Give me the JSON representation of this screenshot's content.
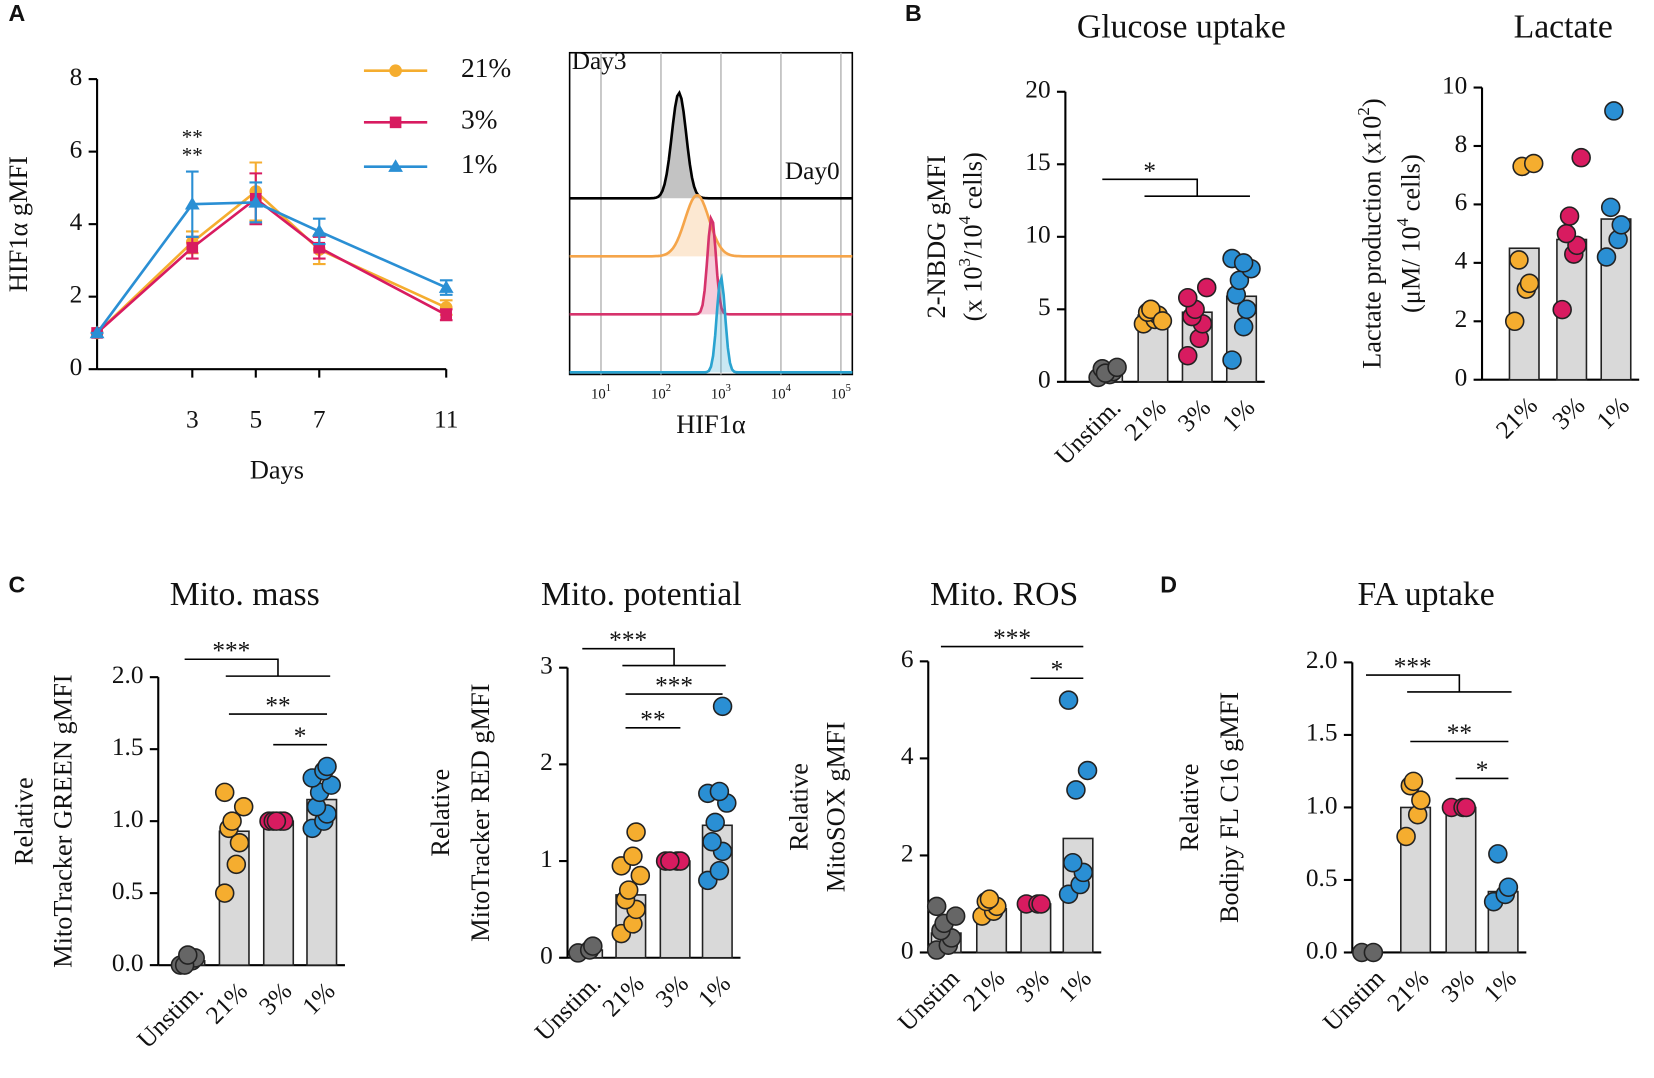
{
  "panels": [
    "A",
    "B",
    "C",
    "D"
  ],
  "chart_data": [
    {
      "type": "line",
      "ylabel": "HIF1α gMFI",
      "xlabel": "Days",
      "x": [
        0,
        3,
        5,
        7,
        11
      ],
      "xlim": [
        0,
        11
      ],
      "xticks": [
        3,
        5,
        7,
        11
      ],
      "ylim": [
        0,
        8
      ],
      "yticks": [
        0,
        2,
        4,
        6,
        8
      ],
      "series": [
        {
          "name": "21%",
          "color": "#f5ad2f",
          "marker": "circle",
          "values": [
            1,
            3.5,
            4.9,
            3.3,
            1.7
          ],
          "errors": [
            0,
            0.3,
            0.8,
            0.4,
            0.2
          ]
        },
        {
          "name": "3%",
          "color": "#d81b60",
          "marker": "square",
          "values": [
            1,
            3.35,
            4.7,
            3.35,
            1.5
          ],
          "errors": [
            0,
            0.3,
            0.7,
            0.3,
            0.15
          ]
        },
        {
          "name": "1%",
          "color": "#2a8fd4",
          "marker": "triangle",
          "values": [
            1,
            4.55,
            4.6,
            3.8,
            2.25
          ],
          "errors": [
            0,
            0.9,
            0.55,
            0.35,
            0.2
          ]
        }
      ],
      "annotations": [
        {
          "text": "**",
          "color": "#f5ad2f"
        },
        {
          "text": "**",
          "color": "#d81b60"
        }
      ]
    },
    {
      "type": "density",
      "title": "Day3",
      "xlabel": "HIF1α",
      "log_scale": true,
      "grid": true,
      "xlim": [
        3,
        155000
      ],
      "xticks": [
        {
          "value": 10,
          "label": "10",
          "sup": "1"
        },
        {
          "value": 100,
          "label": "10",
          "sup": "2"
        },
        {
          "value": 1000,
          "label": "10",
          "sup": "3"
        },
        {
          "value": 10000,
          "label": "10",
          "sup": "4"
        },
        {
          "value": 100000,
          "label": "10",
          "sup": "5"
        }
      ],
      "series": [
        {
          "name": "Day0",
          "color": "#000000",
          "peak": 200
        },
        {
          "color": "#f5a54a",
          "peak": 400
        },
        {
          "color": "#d6336c",
          "peak": 700
        },
        {
          "color": "#2aa3d0",
          "peak": 1000
        }
      ]
    },
    {
      "type": "bar_dot",
      "title": "Glucose uptake",
      "ylabel": [
        [
          "2-NBDG gMFI"
        ],
        [
          "(x 10",
          "3",
          "/10",
          "4",
          " cells)"
        ]
      ],
      "categories": [
        "Unstim.",
        "21%",
        "3%",
        "1%"
      ],
      "colors": [
        "#666666",
        "#f5ad2f",
        "#d81b60",
        "#2a8fd4"
      ],
      "ylim": [
        0,
        20
      ],
      "yticks": [
        0,
        5,
        10,
        15,
        20
      ],
      "values": [
        0.7,
        4.6,
        4.8,
        5.9
      ],
      "points": [
        [
          0.3,
          0.5,
          0.7,
          0.9,
          0.6,
          1.0
        ],
        [
          4.0,
          4.3,
          4.6,
          4.8,
          5.0,
          4.2
        ],
        [
          1.8,
          3.0,
          4.0,
          4.5,
          5.0,
          6.5,
          5.8
        ],
        [
          1.5,
          3.8,
          5.0,
          6.0,
          7.0,
          7.8,
          8.5,
          8.2
        ]
      ],
      "brackets": [
        {
          "label": "*",
          "from": 0,
          "to": [
            1,
            3
          ]
        }
      ]
    },
    {
      "type": "bar_dot",
      "title": "Lactate",
      "ylabel": [
        [
          "Lactate production (x10",
          "2",
          ")"
        ],
        [
          "(μM/ 10",
          "4",
          " cells)"
        ]
      ],
      "categories": [
        "21%",
        "3%",
        "1%"
      ],
      "colors": [
        "#f5ad2f",
        "#d81b60",
        "#2a8fd4"
      ],
      "ylim": [
        0,
        10
      ],
      "yticks": [
        0,
        2,
        4,
        6,
        8,
        10
      ],
      "values": [
        4.5,
        4.8,
        5.5
      ],
      "points": [
        [
          2.0,
          3.1,
          3.3,
          4.1,
          7.3,
          7.4
        ],
        [
          2.4,
          4.3,
          4.6,
          5.0,
          5.6,
          7.6
        ],
        [
          4.2,
          4.8,
          5.3,
          5.9,
          9.2
        ]
      ],
      "brackets": []
    },
    {
      "type": "bar_dot",
      "title": "Mito. mass",
      "ylabel": [
        [
          "Relative"
        ],
        [
          "MitoTracker GREEN gMFI"
        ]
      ],
      "categories": [
        "Unstim.",
        "21%",
        "3%",
        "1%"
      ],
      "colors": [
        "#666666",
        "#f5ad2f",
        "#d81b60",
        "#2a8fd4"
      ],
      "ylim": [
        0,
        2
      ],
      "yticks": [
        {
          "value": 0,
          "label": "0.0"
        },
        {
          "value": 0.5,
          "label": "0.5"
        },
        {
          "value": 1,
          "label": "1.0"
        },
        {
          "value": 1.5,
          "label": "1.5"
        },
        {
          "value": 2,
          "label": "2.0"
        }
      ],
      "values": [
        0.03,
        0.93,
        1.0,
        1.15
      ],
      "points": [
        [
          0.0,
          0.03,
          0.05,
          0.0,
          0.07
        ],
        [
          0.5,
          0.7,
          0.85,
          0.95,
          1.0,
          1.1,
          1.2
        ],
        [
          1.0,
          1.0,
          1.0,
          1.0,
          1.0
        ],
        [
          0.95,
          1.0,
          1.05,
          1.1,
          1.2,
          1.25,
          1.3,
          1.35,
          1.38
        ]
      ],
      "brackets": [
        {
          "label": "***",
          "from": 0,
          "to": [
            1,
            3
          ]
        },
        {
          "label": "**",
          "from": 1,
          "to": 3
        },
        {
          "label": "*",
          "from": 2,
          "to": 3
        }
      ]
    },
    {
      "type": "bar_dot",
      "title": "Mito. potential",
      "ylabel": [
        [
          "Relative"
        ],
        [
          "MitoTracker RED gMFI"
        ]
      ],
      "categories": [
        "Unstim.",
        "21%",
        "3%",
        "1%"
      ],
      "colors": [
        "#666666",
        "#f5ad2f",
        "#d81b60",
        "#2a8fd4"
      ],
      "ylim": [
        0,
        3
      ],
      "yticks": [
        0,
        1,
        2,
        3
      ],
      "values": [
        0.08,
        0.65,
        1.0,
        1.37
      ],
      "points": [
        [
          0.05,
          0.08,
          0.12
        ],
        [
          0.25,
          0.35,
          0.5,
          0.6,
          0.7,
          0.85,
          0.95,
          1.05,
          1.3
        ],
        [
          1.0,
          1.0,
          1.0,
          1.0
        ],
        [
          0.8,
          0.9,
          1.1,
          1.2,
          1.4,
          1.6,
          1.7,
          1.72,
          2.6
        ]
      ],
      "brackets": [
        {
          "label": "***",
          "from": 0,
          "to": [
            1,
            3
          ]
        },
        {
          "label": "***",
          "from": 1,
          "to": 3
        },
        {
          "label": "**",
          "from": 1,
          "to": 2
        }
      ]
    },
    {
      "type": "bar_dot",
      "title": "Mito. ROS",
      "ylabel": [
        [
          "Relative"
        ],
        [
          "MitoSOX gMFI"
        ]
      ],
      "categories": [
        "Unstim",
        "21%",
        "3%",
        "1%"
      ],
      "colors": [
        "#666666",
        "#f5ad2f",
        "#d81b60",
        "#2a8fd4"
      ],
      "ylim": [
        0,
        6
      ],
      "yticks": [
        0,
        2,
        4,
        6
      ],
      "values": [
        0.4,
        0.9,
        1.0,
        2.35
      ],
      "points": [
        [
          0.05,
          0.15,
          0.3,
          0.45,
          0.6,
          0.75,
          0.95
        ],
        [
          0.75,
          0.85,
          0.95,
          1.05,
          1.1
        ],
        [
          1.0,
          1.0,
          1.0
        ],
        [
          1.2,
          1.4,
          1.65,
          1.85,
          3.35,
          3.75,
          5.2
        ]
      ],
      "brackets": [
        {
          "label": "***",
          "from": 0,
          "to": 3
        },
        {
          "label": "*",
          "from": 2,
          "to": 3
        }
      ]
    },
    {
      "type": "bar_dot",
      "title": "FA uptake",
      "ylabel": [
        [
          "Relative"
        ],
        [
          "Bodipy FL C16  gMFI"
        ]
      ],
      "categories": [
        "Unstim",
        "21%",
        "3%",
        "1%"
      ],
      "colors": [
        "#666666",
        "#f5ad2f",
        "#d81b60",
        "#2a8fd4"
      ],
      "ylim": [
        0,
        2
      ],
      "yticks": [
        {
          "value": 0,
          "label": "0.0"
        },
        {
          "value": 0.5,
          "label": "0.5"
        },
        {
          "value": 1,
          "label": "1.0"
        },
        {
          "value": 1.5,
          "label": "1.5"
        },
        {
          "value": 2,
          "label": "2.0"
        }
      ],
      "values": [
        0.0,
        1.0,
        1.0,
        0.42
      ],
      "points": [
        [
          0.0,
          0.0
        ],
        [
          0.8,
          0.95,
          1.05,
          1.15,
          1.18
        ],
        [
          1.0,
          1.0,
          1.0
        ],
        [
          0.35,
          0.4,
          0.45,
          0.68
        ]
      ],
      "brackets": [
        {
          "label": "***",
          "from": 0,
          "to": [
            1,
            3
          ]
        },
        {
          "label": "**",
          "from": 1,
          "to": 3
        },
        {
          "label": "*",
          "from": 2,
          "to": 3
        }
      ]
    }
  ]
}
